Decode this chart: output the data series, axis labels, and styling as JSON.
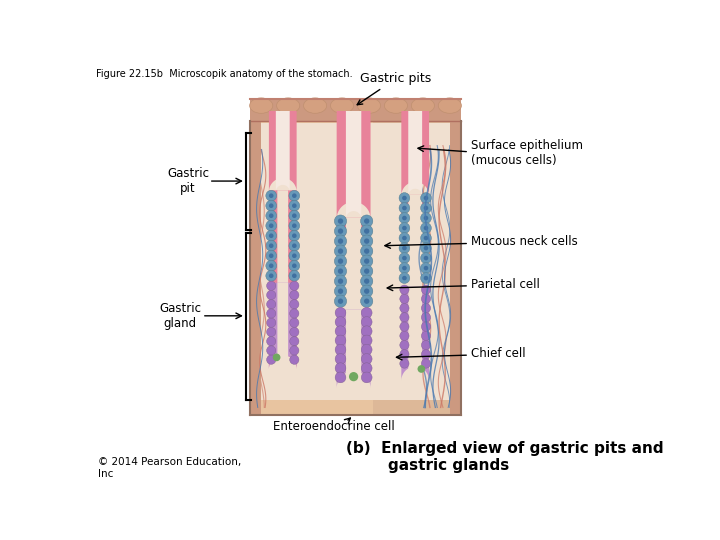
{
  "title_top": "Figure 22.15b  Microscopik anatomy of the stomach.",
  "label_gastric_pits": "Gastric pits",
  "label_surface_epi": "Surface epithelium\n(mucous cells)",
  "label_gastric_pit": "Gastric\npit",
  "label_mucous_neck": "Mucous neck cells",
  "label_parietal": "Parietal cell",
  "label_gastric_gland": "Gastric\ngland",
  "label_chief": "Chief cell",
  "label_entero": "Enteroendocrine cell",
  "caption_b": "(b)  Enlarged view of gastric pits and\n        gastric glands",
  "copyright": "© 2014 Pearson Education,\nInc",
  "bg_color": "#ffffff",
  "skin_bg": "#e8c4a0",
  "skin_outer": "#cc8866",
  "skin_surface": "#d4998a",
  "pit_outer_pink": "#e8829a",
  "pit_inner_white": "#f5e8e0",
  "gland_outer_purple": "#c090cc",
  "gland_inner_pink": "#e8a898",
  "parietal_blue": "#6899b8",
  "parietal_dark": "#4070a0",
  "chief_purple": "#a070c0",
  "entero_green": "#70a860",
  "blood_blue": "#4878b0",
  "blood_red": "#cc4444",
  "tissue_tan": "#d4b090",
  "lumen_color": "#f0e0d0"
}
